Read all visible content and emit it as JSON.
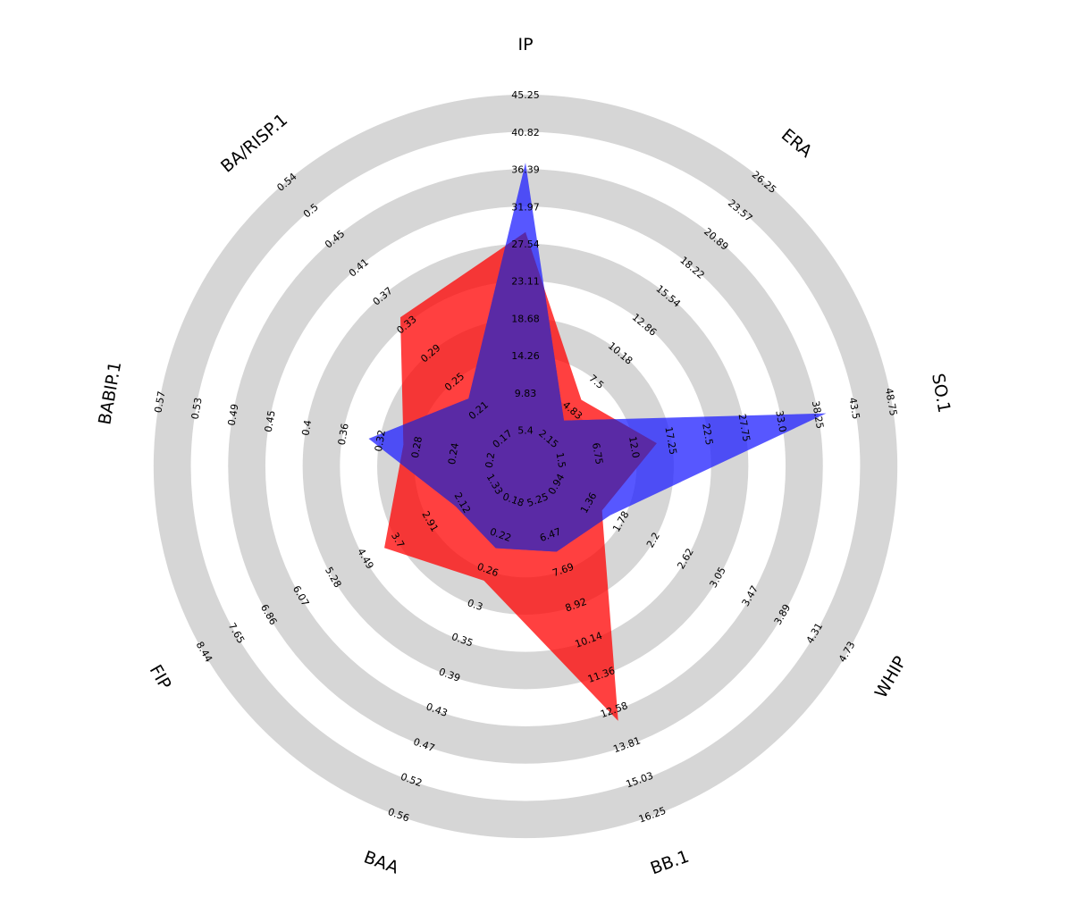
{
  "chart_data": {
    "type": "radar",
    "params": [
      "IP",
      "ERA",
      "SO.1",
      "WHIP",
      "BB.1",
      "BAA",
      "FIP",
      "BABIP.1",
      "BA/RISP.1"
    ],
    "ticks": [
      [
        "5.4",
        "9.83",
        "14.26",
        "18.68",
        "23.11",
        "27.54",
        "31.97",
        "36.39",
        "40.82",
        "45.25"
      ],
      [
        "2.15",
        "4.83",
        "7.5",
        "10.18",
        "12.86",
        "15.54",
        "18.22",
        "20.89",
        "23.57",
        "26.25"
      ],
      [
        "1.5",
        "6.75",
        "12.0",
        "17.25",
        "22.5",
        "27.75",
        "33.0",
        "38.25",
        "43.5",
        "48.75"
      ],
      [
        "0.94",
        "1.36",
        "1.78",
        "2.2",
        "2.62",
        "3.05",
        "3.47",
        "3.89",
        "4.31",
        "4.73"
      ],
      [
        "5.25",
        "6.47",
        "7.69",
        "8.92",
        "10.14",
        "11.36",
        "12.58",
        "13.81",
        "15.03",
        "16.25"
      ],
      [
        "0.18",
        "0.22",
        "0.26",
        "0.3",
        "0.35",
        "0.39",
        "0.43",
        "0.47",
        "0.52",
        "0.56"
      ],
      [
        "1.33",
        "2.12",
        "2.91",
        "3.7",
        "4.49",
        "5.28",
        "6.07",
        "6.86",
        "7.65",
        "8.44"
      ],
      [
        "0.2",
        "0.24",
        "0.28",
        "0.32",
        "0.36",
        "0.4",
        "0.45",
        "0.49",
        "0.53",
        "0.57"
      ],
      [
        "0.17",
        "0.21",
        "0.25",
        "0.29",
        "0.33",
        "0.37",
        "0.41",
        "0.45",
        "0.5",
        "0.54"
      ]
    ],
    "series": [
      {
        "color": "#ff0000",
        "values": [
          27.5,
          4.6,
          13.0,
          1.34,
          12.6,
          0.26,
          3.7,
          0.28,
          0.33
        ]
      },
      {
        "color": "#1f1fff",
        "values": [
          36.0,
          2.6,
          38.0,
          1.45,
          6.5,
          0.22,
          1.9,
          0.32,
          0.21
        ]
      }
    ],
    "ranges": {
      "min": [
        1.0,
        -0.5,
        -3.75,
        0.52,
        4.03,
        0.14,
        0.54,
        0.16,
        0.13
      ],
      "max": [
        49.7,
        28.9,
        54.0,
        5.15,
        17.5,
        0.6,
        9.2,
        0.61,
        0.58
      ]
    },
    "colors": {
      "ring_gray": "#d6d6d6",
      "ring_white": "#ffffff",
      "overlap": "#5a2aa5"
    }
  }
}
